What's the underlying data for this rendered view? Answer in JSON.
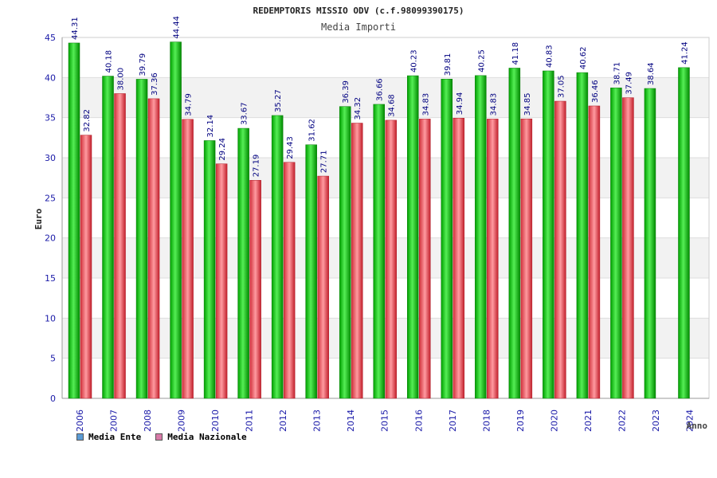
{
  "chart_data": {
    "type": "bar",
    "title": "REDEMPTORIS MISSIO ODV (c.f.98099390175)",
    "subtitle": "Media Importi",
    "xlabel": "Anno",
    "ylabel": "Euro",
    "ylim": [
      0,
      45
    ],
    "yticks": [
      0,
      5,
      10,
      15,
      20,
      25,
      30,
      35,
      40,
      45
    ],
    "grid": true,
    "legend_position": "bottom-left",
    "categories": [
      "2006",
      "2007",
      "2008",
      "2009",
      "2010",
      "2011",
      "2012",
      "2013",
      "2014",
      "2015",
      "2016",
      "2017",
      "2018",
      "2019",
      "2020",
      "2021",
      "2022",
      "2023",
      "2024"
    ],
    "series": [
      {
        "name": "Media Ente",
        "values": [
          44.31,
          40.18,
          39.79,
          44.44,
          32.14,
          33.67,
          35.27,
          31.62,
          36.39,
          36.66,
          40.23,
          39.81,
          40.25,
          41.18,
          40.83,
          40.62,
          38.71,
          38.64,
          41.24
        ],
        "labels": [
          "44.31",
          "40.18",
          "39.79",
          "44.44",
          "32.14",
          "33.67",
          "35.27",
          "31.62",
          "36.39",
          "36.66",
          "40.23",
          "39.81",
          "40.25",
          "41.18",
          "40.83",
          "40.62",
          "38.71",
          "38.64",
          "41.24"
        ],
        "color": "#1aab1a",
        "legend_color": "#5b9bd5"
      },
      {
        "name": "Media Nazionale",
        "values": [
          32.82,
          38.0,
          37.36,
          34.79,
          29.24,
          27.19,
          29.43,
          27.71,
          34.32,
          34.68,
          34.83,
          34.94,
          34.83,
          34.85,
          37.05,
          36.46,
          37.49,
          null,
          null
        ],
        "labels": [
          "32.82",
          "38.00",
          "37.36",
          "34.79",
          "29.24",
          "27.19",
          "29.43",
          "27.71",
          "34.32",
          "34.68",
          "34.83",
          "34.94",
          "34.83",
          "34.85",
          "37.05",
          "36.46",
          "37.49",
          null,
          null
        ],
        "color": "#e03a45",
        "legend_color": "#d87aa8"
      }
    ]
  }
}
